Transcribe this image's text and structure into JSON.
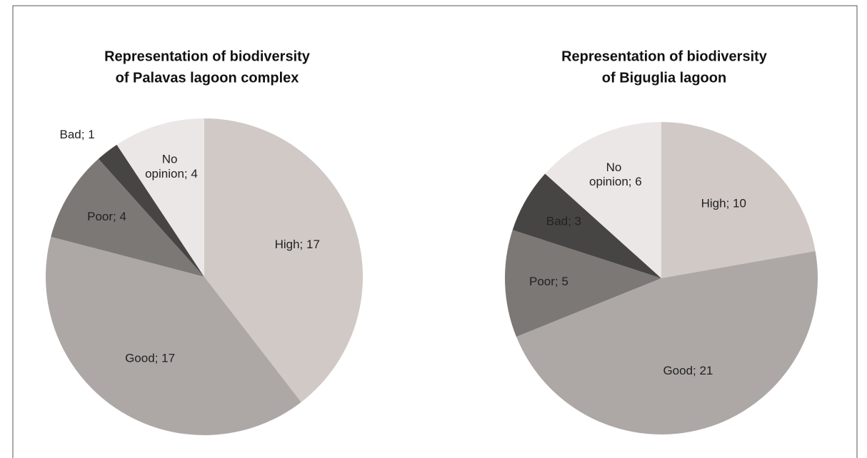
{
  "chart_data": [
    {
      "type": "pie",
      "title": [
        "Representation of biodiversity",
        "of Palavas lagoon complex"
      ],
      "values": [
        17,
        17,
        4,
        1,
        4
      ],
      "value_labels": [
        "High; 17",
        "Good; 17",
        "Poor; 4",
        "Bad; 1",
        "No opinion; 4"
      ],
      "colors": [
        "#d0c9c6",
        "#ada8a5",
        "#7b7876",
        "#474544",
        "#ebe7e6"
      ]
    },
    {
      "type": "pie",
      "title": [
        "Representation of biodiversity",
        "of Biguglia lagoon"
      ],
      "values": [
        10,
        21,
        5,
        3,
        6
      ],
      "value_labels": [
        "High; 10",
        "Good; 21",
        "Poor; 5",
        "Bad; 3",
        "No opinion; 6"
      ],
      "colors": [
        "#d0c9c6",
        "#ada8a5",
        "#7b7876",
        "#474544",
        "#ebe7e6"
      ]
    }
  ]
}
